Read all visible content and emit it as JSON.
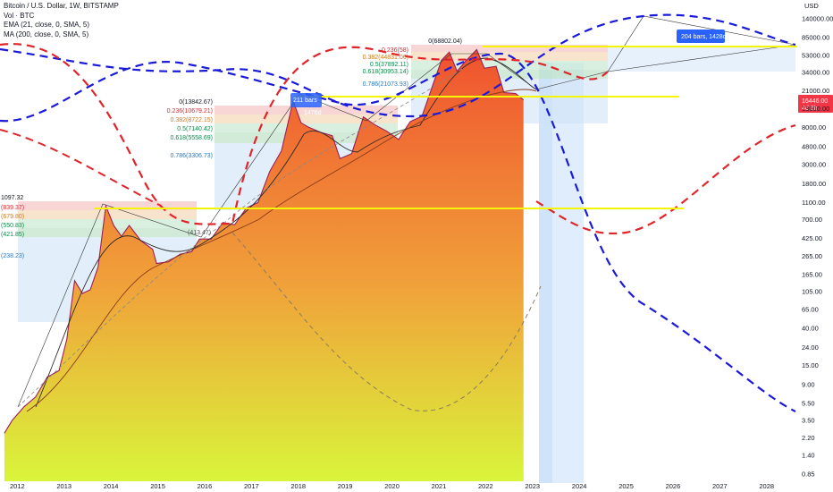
{
  "legend": {
    "title": "Bitcoin / U.S. Dollar, 1W, BITSTAMP",
    "vol": "Vol · BTC",
    "ema": "EMA (21, close, 0, SMA, 5)",
    "ma": "MA (200, close, 0, SMA, 5)"
  },
  "price_badge": {
    "price": "16446.00",
    "countdown": "4d 9h",
    "color": "#f23645"
  },
  "colors": {
    "bull": "#089981",
    "bear": "#f23645",
    "blue_dash": "#1a1adb",
    "red_dash": "#e0242a",
    "yellow": "#f5f50a",
    "area_top": "#f0522f",
    "area_bottom": "#d9f53a"
  },
  "chart_data": {
    "type": "line",
    "title": "Bitcoin / U.S. Dollar, 1W, BITSTAMP",
    "y_scale": "log",
    "y_unit": "USD",
    "ylim": [
      0.85,
      300000
    ],
    "x_range": [
      "2011-08",
      "2028-06"
    ],
    "x_ticks": [
      "2012",
      "2013",
      "2014",
      "2015",
      "2016",
      "2017",
      "2018",
      "2019",
      "2020",
      "2021",
      "2022",
      "2023",
      "2024",
      "2025",
      "2026",
      "2027",
      "2028"
    ],
    "y_ticks": [
      "140000.00",
      "85000.00",
      "53000.00",
      "34000.00",
      "21000.00",
      "13000.00",
      "8000.00",
      "4800.00",
      "3000.00",
      "1800.00",
      "1100.00",
      "700.00",
      "425.00",
      "265.00",
      "165.00",
      "105.00",
      "65.00",
      "40.00",
      "24.00",
      "15.00",
      "9.00",
      "5.50",
      "3.50",
      "2.20",
      "1.40",
      "0.85"
    ],
    "series": [
      {
        "name": "Bitcoin / U.S. Dollar",
        "points": [
          [
            "2011-10",
            2.5
          ],
          [
            "2011-12",
            3.5
          ],
          [
            "2012-03",
            5
          ],
          [
            "2012-06",
            6.5
          ],
          [
            "2012-09",
            11
          ],
          [
            "2012-12",
            13
          ],
          [
            "2013-02",
            30
          ],
          [
            "2013-04",
            140
          ],
          [
            "2013-06",
            100
          ],
          [
            "2013-08",
            110
          ],
          [
            "2013-10",
            200
          ],
          [
            "2013-12",
            1000
          ],
          [
            "2014-02",
            600
          ],
          [
            "2014-04",
            450
          ],
          [
            "2014-06",
            600
          ],
          [
            "2014-09",
            400
          ],
          [
            "2014-12",
            320
          ],
          [
            "2015-01",
            220
          ],
          [
            "2015-04",
            230
          ],
          [
            "2015-07",
            280
          ],
          [
            "2015-10",
            300
          ],
          [
            "2015-12",
            420
          ],
          [
            "2016-03",
            420
          ],
          [
            "2016-06",
            650
          ],
          [
            "2016-09",
            610
          ],
          [
            "2016-12",
            950
          ],
          [
            "2017-03",
            1100
          ],
          [
            "2017-06",
            2500
          ],
          [
            "2017-09",
            4300
          ],
          [
            "2017-12",
            16000
          ],
          [
            "2018-02",
            9000
          ],
          [
            "2018-04",
            8000
          ],
          [
            "2018-07",
            7000
          ],
          [
            "2018-10",
            6400
          ],
          [
            "2018-12",
            3500
          ],
          [
            "2019-03",
            4000
          ],
          [
            "2019-06",
            10500
          ],
          [
            "2019-09",
            8500
          ],
          [
            "2019-12",
            7200
          ],
          [
            "2020-03",
            5800
          ],
          [
            "2020-06",
            9300
          ],
          [
            "2020-09",
            10700
          ],
          [
            "2020-12",
            26000
          ],
          [
            "2021-02",
            47000
          ],
          [
            "2021-04",
            58000
          ],
          [
            "2021-06",
            35000
          ],
          [
            "2021-08",
            45000
          ],
          [
            "2021-11",
            62000
          ],
          [
            "2022-01",
            38000
          ],
          [
            "2022-04",
            40000
          ],
          [
            "2022-06",
            20000
          ],
          [
            "2022-09",
            19500
          ],
          [
            "2022-11",
            16446
          ]
        ]
      }
    ],
    "fib_annotations": [
      {
        "cycle": "2013",
        "levels": [
          "1097.32",
          "(839.37)",
          "(679.80)",
          "(550.83)",
          "(421.85)",
          "(238.23)"
        ]
      },
      {
        "cycle": "2017",
        "levels": [
          "0(13842.67)",
          "0.236(10679.21)",
          "0.382(8722.15)",
          "0.5(7140.42)",
          "0.618(5558.69)",
          "0.786(3306.73)"
        ]
      },
      {
        "cycle": "2021",
        "levels": [
          "0(68802.04)",
          "0.236(58)",
          "0.382(44831.06)",
          "0.5(37892.11)",
          "0.618(30953.14)",
          "0.786(21073.93)"
        ]
      }
    ],
    "annotations": [
      "204 bars, 1428d",
      "211 bars",
      "1476d",
      "(413.47)"
    ],
    "legend_placement": "top-left",
    "grid": false
  }
}
